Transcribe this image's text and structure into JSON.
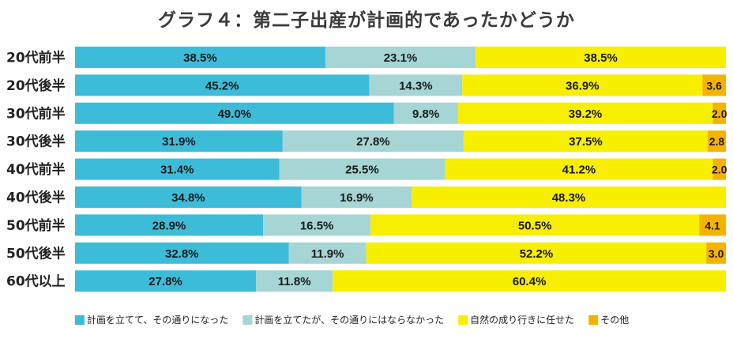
{
  "chart_data": {
    "type": "bar",
    "orientation": "horizontal",
    "stacked": "percent",
    "title": "グラフ４：第二子出産が計画的であったかどうか",
    "categories": [
      "20代前半",
      "20代後半",
      "30代前半",
      "30代後半",
      "40代前半",
      "40代後半",
      "50代前半",
      "50代後半",
      "60代以上"
    ],
    "series": [
      {
        "name": "計画を立てて、その通りになった",
        "color": "#3dbcd9",
        "values": [
          38.5,
          45.2,
          49.0,
          31.9,
          31.4,
          34.8,
          28.9,
          32.8,
          27.8
        ],
        "labels": [
          "38.5%",
          "45.2%",
          "49.0%",
          "31.9%",
          "31.4%",
          "34.8%",
          "28.9%",
          "32.8%",
          "27.8%"
        ]
      },
      {
        "name": "計画を立てたが、その通りにはならなかった",
        "color": "#a6d5d5",
        "values": [
          23.1,
          14.3,
          9.8,
          27.8,
          25.5,
          16.9,
          16.5,
          11.9,
          11.8
        ],
        "labels": [
          "23.1%",
          "14.3%",
          "9.8%",
          "27.8%",
          "25.5%",
          "16.9%",
          "16.5%",
          "11.9%",
          "11.8%"
        ]
      },
      {
        "name": "自然の成り行きに任せた",
        "color": "#f7ee00",
        "values": [
          38.5,
          36.9,
          39.2,
          37.5,
          41.2,
          48.3,
          50.5,
          52.2,
          60.4
        ],
        "labels": [
          "38.5%",
          "36.9%",
          "39.2%",
          "37.5%",
          "41.2%",
          "48.3%",
          "50.5%",
          "52.2%",
          "60.4%"
        ]
      },
      {
        "name": "その他",
        "color": "#f5b300",
        "values": [
          0,
          3.6,
          2.0,
          2.8,
          2.0,
          0,
          4.1,
          3.0,
          0
        ],
        "labels": [
          "",
          "3.6",
          "2.0",
          "2.8",
          "2.0",
          "",
          "4.1",
          "3.0",
          ""
        ]
      }
    ],
    "xlim": [
      0,
      100
    ],
    "legend": "bottom",
    "grid": false
  }
}
